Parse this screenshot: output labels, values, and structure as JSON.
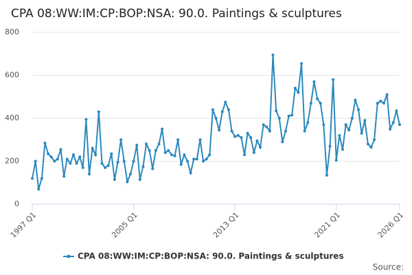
{
  "chart_data": {
    "type": "line",
    "title": "CPA 08:WW:IM:CP:BOP:NSA: 90.0. Paintings & sculptures",
    "source": "Source:",
    "categories": [
      "1997 Q1",
      null,
      null,
      null,
      null,
      null,
      null,
      null,
      null,
      null,
      null,
      null,
      null,
      null,
      null,
      null,
      null,
      null,
      null,
      null,
      null,
      null,
      null,
      null,
      null,
      null,
      null,
      null,
      null,
      null,
      null,
      null,
      "2005 Q1",
      null,
      null,
      null,
      null,
      null,
      null,
      null,
      null,
      null,
      null,
      null,
      null,
      null,
      null,
      null,
      null,
      null,
      null,
      null,
      null,
      null,
      null,
      null,
      null,
      null,
      null,
      null,
      null,
      null,
      null,
      null,
      "2013 Q1",
      null,
      null,
      null,
      null,
      null,
      null,
      null,
      null,
      null,
      null,
      null,
      null,
      null,
      null,
      null,
      null,
      null,
      null,
      null,
      null,
      null,
      null,
      null,
      null,
      null,
      null,
      null,
      null,
      null,
      null,
      null,
      "2021 Q1",
      null,
      null,
      null,
      null,
      null,
      null,
      null,
      null,
      null,
      null,
      null,
      null,
      null,
      null,
      null,
      null,
      null,
      null,
      null,
      "2026 Q1"
    ],
    "series": [
      {
        "name": "CPA 08:WW:IM:CP:BOP:NSA: 90.0. Paintings & sculptures",
        "color": "#2a88bd",
        "values": [
          120,
          200,
          70,
          120,
          285,
          235,
          220,
          200,
          210,
          255,
          130,
          210,
          190,
          230,
          190,
          220,
          170,
          395,
          140,
          260,
          230,
          430,
          190,
          170,
          180,
          235,
          115,
          195,
          300,
          200,
          105,
          140,
          200,
          275,
          115,
          175,
          280,
          250,
          165,
          250,
          280,
          350,
          240,
          250,
          230,
          225,
          300,
          185,
          230,
          200,
          145,
          210,
          210,
          300,
          200,
          210,
          230,
          440,
          400,
          345,
          430,
          475,
          440,
          340,
          315,
          320,
          310,
          230,
          330,
          310,
          240,
          295,
          265,
          370,
          360,
          340,
          695,
          435,
          400,
          290,
          340,
          410,
          415,
          540,
          520,
          655,
          340,
          380,
          470,
          570,
          490,
          470,
          370,
          135,
          270,
          580,
          205,
          320,
          255,
          370,
          345,
          400,
          485,
          440,
          330,
          390,
          280,
          265,
          300,
          470,
          480,
          470,
          510,
          350,
          380,
          435,
          370
        ]
      }
    ],
    "ylim": [
      0,
      800
    ],
    "yticks": [
      0,
      200,
      400,
      600,
      800
    ],
    "grid": true,
    "legend": "bottom"
  }
}
